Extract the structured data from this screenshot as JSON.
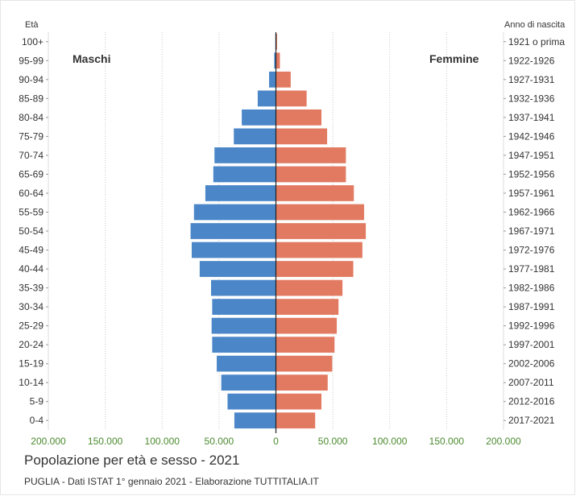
{
  "chart_data": {
    "type": "bar",
    "title": "Popolazione per età e sesso - 2021",
    "subtitle": "PUGLIA - Dati ISTAT 1° gennaio 2021 - Elaborazione TUTTITALIA.IT",
    "left_axis_title": "Età",
    "right_axis_title": "Anno di nascita",
    "male_label": "Maschi",
    "female_label": "Femmine",
    "categories": [
      "100+",
      "95-99",
      "90-94",
      "85-89",
      "80-84",
      "75-79",
      "70-74",
      "65-69",
      "60-64",
      "55-59",
      "50-54",
      "45-49",
      "40-44",
      "35-39",
      "30-34",
      "25-29",
      "20-24",
      "15-19",
      "10-14",
      "5-9",
      "0-4"
    ],
    "birth_years": [
      "1921 o prima",
      "1922-1926",
      "1927-1931",
      "1932-1936",
      "1937-1941",
      "1942-1946",
      "1947-1951",
      "1952-1956",
      "1957-1961",
      "1962-1966",
      "1967-1971",
      "1972-1976",
      "1977-1981",
      "1982-1986",
      "1987-1991",
      "1992-1996",
      "1997-2001",
      "2002-2006",
      "2007-2011",
      "2012-2016",
      "2017-2021"
    ],
    "series": [
      {
        "name": "Maschi",
        "color": "#4a86c8",
        "values": [
          500,
          1500,
          6000,
          16000,
          30000,
          37000,
          54000,
          55000,
          62000,
          72000,
          75000,
          74000,
          67000,
          57000,
          56000,
          56500,
          56000,
          52000,
          48000,
          42500,
          36500
        ]
      },
      {
        "name": "Femmine",
        "color": "#e27a61",
        "values": [
          1000,
          3500,
          13000,
          27000,
          40000,
          45000,
          61500,
          61500,
          68500,
          77500,
          79000,
          76000,
          68000,
          58500,
          55000,
          53500,
          51500,
          49500,
          45500,
          40000,
          34500
        ]
      }
    ],
    "x_tick_labels": [
      "200.000",
      "150.000",
      "100.000",
      "50.000",
      "0",
      "50.000",
      "100.000",
      "150.000",
      "200.000"
    ],
    "xlim": [
      -200000,
      200000
    ],
    "grid": true,
    "axis_label_color": "#4a8a2e"
  }
}
